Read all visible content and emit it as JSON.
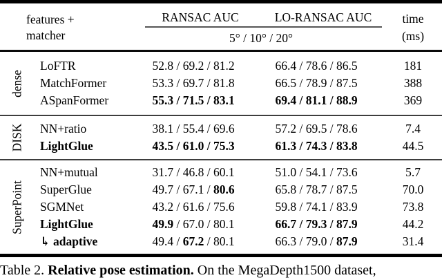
{
  "header": {
    "col_features": "features +",
    "col_matcher": "matcher",
    "ransac_label": "RANSAC AUC",
    "lo_ransac_label": "LO-RANSAC AUC",
    "thresholds": "5° / 10° / 20°",
    "time_label": "time",
    "time_unit": "(ms)"
  },
  "groups": [
    {
      "label": "dense",
      "pad_class": "g-dense",
      "rows": [
        {
          "method": "LoFTR",
          "method_bold": false,
          "prefix": "",
          "ransac": [
            "52.8",
            "69.2",
            "81.2"
          ],
          "ransac_bold": [
            false,
            false,
            false
          ],
          "lo_ransac": [
            "66.4",
            "78.6",
            "86.5"
          ],
          "lo_ransac_bold": [
            false,
            false,
            false
          ],
          "time": "181",
          "time_bold": false
        },
        {
          "method": "MatchFormer",
          "method_bold": false,
          "prefix": "",
          "ransac": [
            "53.3",
            "69.7",
            "81.8"
          ],
          "ransac_bold": [
            false,
            false,
            false
          ],
          "lo_ransac": [
            "66.5",
            "78.9",
            "87.5"
          ],
          "lo_ransac_bold": [
            false,
            false,
            false
          ],
          "time": "388",
          "time_bold": false
        },
        {
          "method": "ASpanFormer",
          "method_bold": false,
          "prefix": "",
          "ransac": [
            "55.3",
            "71.5",
            "83.1"
          ],
          "ransac_bold": [
            true,
            true,
            true
          ],
          "lo_ransac": [
            "69.4",
            "81.1",
            "88.9"
          ],
          "lo_ransac_bold": [
            true,
            true,
            true
          ],
          "time": "369",
          "time_bold": false
        }
      ]
    },
    {
      "label": "DISK",
      "pad_class": "g-pad-6",
      "rows": [
        {
          "method": "NN+ratio",
          "method_bold": false,
          "prefix": "",
          "ransac": [
            "38.1",
            "55.4",
            "69.6"
          ],
          "ransac_bold": [
            false,
            false,
            false
          ],
          "lo_ransac": [
            "57.2",
            "69.5",
            "78.6"
          ],
          "lo_ransac_bold": [
            false,
            false,
            false
          ],
          "time": "7.4",
          "time_bold": false
        },
        {
          "method": "LightGlue",
          "method_bold": true,
          "prefix": "",
          "ransac": [
            "43.5",
            "61.0",
            "75.3"
          ],
          "ransac_bold": [
            true,
            true,
            true
          ],
          "lo_ransac": [
            "61.3",
            "74.3",
            "83.8"
          ],
          "lo_ransac_bold": [
            true,
            true,
            true
          ],
          "time": "44.5",
          "time_bold": false
        }
      ]
    },
    {
      "label": "SuperPoint",
      "pad_class": "g-pad-5",
      "rows": [
        {
          "method": "NN+mutual",
          "method_bold": false,
          "prefix": "",
          "ransac": [
            "31.7",
            "46.8",
            "60.1"
          ],
          "ransac_bold": [
            false,
            false,
            false
          ],
          "lo_ransac": [
            "51.0",
            "54.1",
            "73.6"
          ],
          "lo_ransac_bold": [
            false,
            false,
            false
          ],
          "time": "5.7",
          "time_bold": false
        },
        {
          "method": "SuperGlue",
          "method_bold": false,
          "prefix": "",
          "ransac": [
            "49.7",
            "67.1",
            "80.6"
          ],
          "ransac_bold": [
            false,
            false,
            true
          ],
          "lo_ransac": [
            "65.8",
            "78.7",
            "87.5"
          ],
          "lo_ransac_bold": [
            false,
            false,
            false
          ],
          "time": "70.0",
          "time_bold": false
        },
        {
          "method": "SGMNet",
          "method_bold": false,
          "prefix": "",
          "ransac": [
            "43.2",
            "61.6",
            "75.6"
          ],
          "ransac_bold": [
            false,
            false,
            false
          ],
          "lo_ransac": [
            "59.8",
            "74.1",
            "83.9"
          ],
          "lo_ransac_bold": [
            false,
            false,
            false
          ],
          "time": "73.8",
          "time_bold": false
        },
        {
          "method": "LightGlue",
          "method_bold": true,
          "prefix": "",
          "ransac": [
            "49.9",
            "67.0",
            "80.1"
          ],
          "ransac_bold": [
            true,
            false,
            false
          ],
          "lo_ransac": [
            "66.7",
            "79.3",
            "87.9"
          ],
          "lo_ransac_bold": [
            true,
            true,
            true
          ],
          "time": "44.2",
          "time_bold": false
        },
        {
          "method": "adaptive",
          "method_bold": true,
          "prefix": "↳",
          "ransac": [
            "49.4",
            "67.2",
            "80.1"
          ],
          "ransac_bold": [
            false,
            true,
            false
          ],
          "lo_ransac": [
            "66.3",
            "79.0",
            "87.9"
          ],
          "lo_ransac_bold": [
            false,
            false,
            true
          ],
          "time": "31.4",
          "time_bold": false
        }
      ]
    }
  ],
  "caption": {
    "parts": [
      {
        "text": "Table 2. ",
        "bold": false
      },
      {
        "text": "Relative pose estimation.",
        "bold": true
      },
      {
        "text": " On the MegaDepth1500 dataset,",
        "bold": false
      }
    ]
  },
  "colors": {
    "text": "#000000",
    "thick_rule": "#000000",
    "mid_rule": "#3d3d3d",
    "cmidrule": "#555555"
  }
}
